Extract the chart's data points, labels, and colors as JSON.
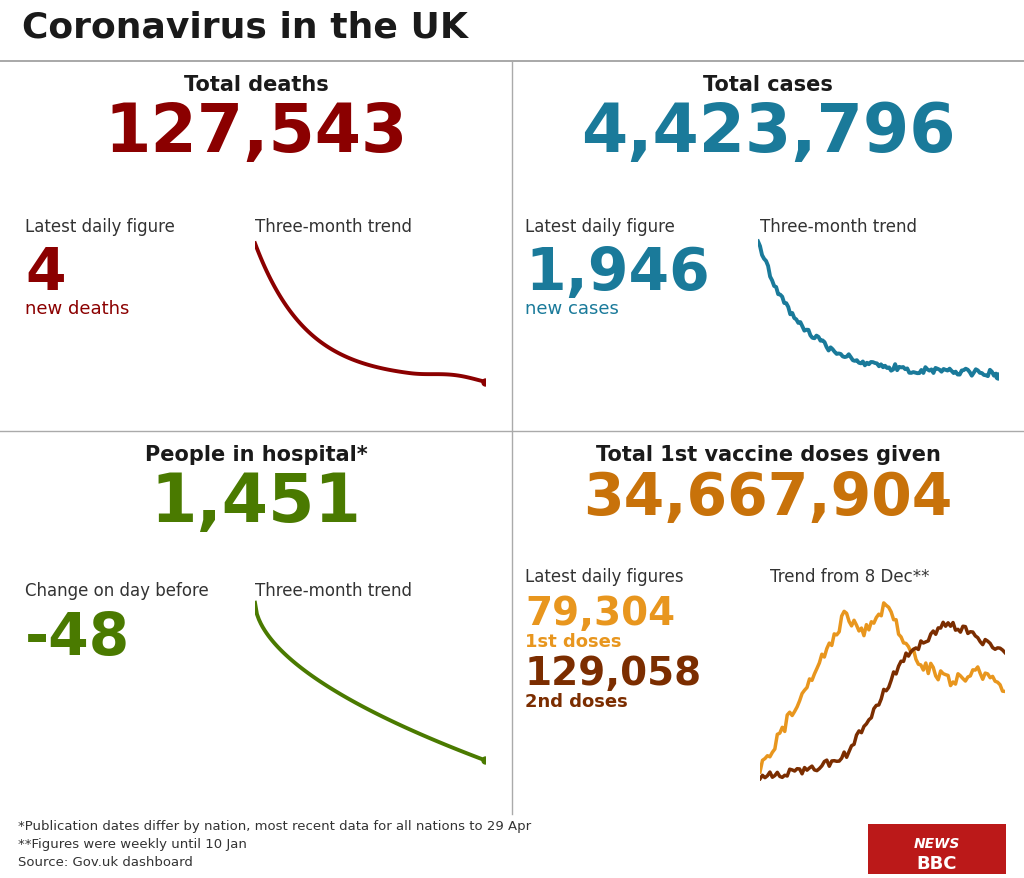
{
  "title": "Coronavirus in the UK",
  "bg_color": "#ffffff",
  "title_color": "#1a1a1a",
  "panel_titles": [
    "Total deaths",
    "Total cases",
    "People in hospital*",
    "Total 1st vaccine doses given"
  ],
  "panel_title_color": "#1a1a1a",
  "total_deaths": "127,543",
  "total_deaths_color": "#8b0000",
  "deaths_daily_label": "Latest daily figure",
  "deaths_daily_value": "4",
  "deaths_daily_sublabel": "new deaths",
  "deaths_trend_label": "Three-month trend",
  "deaths_color": "#8b0000",
  "total_cases": "4,423,796",
  "total_cases_color": "#1a7a9a",
  "cases_daily_label": "Latest daily figure",
  "cases_daily_value": "1,946",
  "cases_daily_sublabel": "new cases",
  "cases_trend_label": "Three-month trend",
  "cases_color": "#1a7a9a",
  "hospital_total": "1,451",
  "hospital_color": "#4a7a00",
  "hospital_change_label": "Change on day before",
  "hospital_change_value": "-48",
  "hospital_trend_label": "Three-month trend",
  "vaccine_total": "34,667,904",
  "vaccine_color": "#c8720a",
  "vaccine_daily_label": "Latest daily figures",
  "vaccine_trend_label": "Trend from 8 Dec**",
  "vaccine_1st_value": "79,304",
  "vaccine_1st_label": "1st doses",
  "vaccine_1st_color": "#e8961e",
  "vaccine_2nd_value": "129,058",
  "vaccine_2nd_label": "2nd doses",
  "vaccine_2nd_color": "#7b2d00",
  "footnote1": "*Publication dates differ by nation, most recent data for all nations to 29 Apr",
  "footnote2": "**Figures were weekly until 10 Jan",
  "footnote3": "Source: Gov.uk dashboard",
  "footnote_color": "#333333",
  "bbc_color": "#bb1919"
}
